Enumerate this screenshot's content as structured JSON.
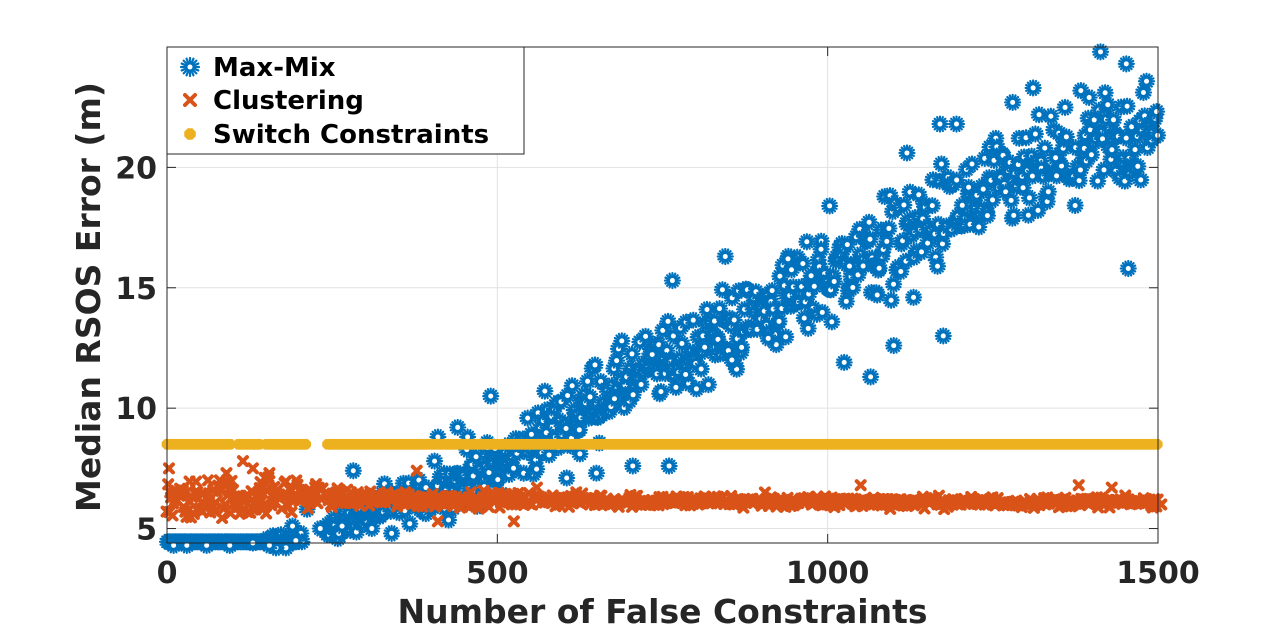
{
  "chart_data": {
    "type": "scatter",
    "title": "",
    "xlabel": "Number of False Constraints",
    "ylabel": "Median RSOS Error (m)",
    "xlim": [
      0,
      1500
    ],
    "ylim": [
      4.4,
      25
    ],
    "xticks": [
      0,
      500,
      1000,
      1500
    ],
    "yticks": [
      5,
      10,
      15,
      20
    ],
    "grid": true,
    "legend_position": "top-left",
    "series": [
      {
        "name": "Max-Mix",
        "color": "#0072BD",
        "marker": "asterisk",
        "trend": [
          [
            0,
            4.3
          ],
          [
            150,
            4.4
          ],
          [
            200,
            4.6
          ],
          [
            250,
            5.0
          ],
          [
            300,
            5.6
          ],
          [
            400,
            6.4
          ],
          [
            500,
            7.6
          ],
          [
            600,
            9.5
          ],
          [
            700,
            11.2
          ],
          [
            800,
            12.5
          ],
          [
            900,
            14.0
          ],
          [
            1000,
            15.5
          ],
          [
            1100,
            17.0
          ],
          [
            1200,
            18.2
          ],
          [
            1300,
            19.5
          ],
          [
            1400,
            20.7
          ],
          [
            1500,
            21.5
          ]
        ],
        "spread": [
          [
            0,
            0.05
          ],
          [
            200,
            0.3
          ],
          [
            400,
            0.9
          ],
          [
            600,
            1.3
          ],
          [
            800,
            1.6
          ],
          [
            1000,
            1.8
          ],
          [
            1200,
            2.0
          ],
          [
            1500,
            2.0
          ]
        ],
        "points": [
          [
            1413,
            24.8
          ],
          [
            1452,
            24.3
          ],
          [
            1311,
            23.3
          ],
          [
            1420,
            23.1
          ],
          [
            1280,
            22.7
          ],
          [
            1195,
            21.8
          ],
          [
            1170,
            21.8
          ],
          [
            1120,
            20.6
          ],
          [
            1345,
            20.4
          ],
          [
            1455,
            15.8
          ],
          [
            1003,
            18.4
          ],
          [
            990,
            16.6
          ],
          [
            940,
            16.2
          ],
          [
            845,
            16.3
          ],
          [
            1033,
            15.9
          ],
          [
            1075,
            14.7
          ],
          [
            975,
            15.5
          ],
          [
            765,
            15.3
          ],
          [
            1130,
            14.6
          ],
          [
            1175,
            13.0
          ],
          [
            1100,
            12.6
          ],
          [
            1065,
            11.3
          ],
          [
            1025,
            11.9
          ],
          [
            785,
            11.4
          ],
          [
            910,
            12.9
          ],
          [
            855,
            12.0
          ],
          [
            705,
            7.6
          ],
          [
            760,
            7.6
          ],
          [
            625,
            8.1
          ],
          [
            650,
            7.3
          ],
          [
            605,
            7.1
          ],
          [
            490,
            10.5
          ],
          [
            440,
            9.2
          ],
          [
            455,
            8.8
          ],
          [
            405,
            7.8
          ],
          [
            410,
            8.8
          ],
          [
            392,
            6.7
          ],
          [
            340,
            4.8
          ],
          [
            310,
            5.0
          ],
          [
            282,
            7.4
          ],
          [
            260,
            4.8
          ],
          [
            265,
            5.1
          ],
          [
            232,
            5.0
          ],
          [
            212,
            5.8
          ],
          [
            190,
            5.1
          ],
          [
            195,
            4.5
          ],
          [
            180,
            4.2
          ],
          [
            165,
            4.2
          ],
          [
            155,
            4.3
          ],
          [
            130,
            4.4
          ],
          [
            95,
            4.3
          ],
          [
            60,
            4.3
          ],
          [
            30,
            4.3
          ],
          [
            10,
            4.3
          ]
        ]
      },
      {
        "name": "Clustering",
        "color": "#D95319",
        "marker": "x",
        "trend": [
          [
            0,
            6.1
          ],
          [
            200,
            6.4
          ],
          [
            250,
            6.3
          ],
          [
            400,
            6.2
          ],
          [
            500,
            6.2
          ],
          [
            1000,
            6.1
          ],
          [
            1500,
            6.1
          ]
        ],
        "spread": [
          [
            0,
            0.8
          ],
          [
            200,
            0.7
          ],
          [
            250,
            0.35
          ],
          [
            600,
            0.25
          ],
          [
            1500,
            0.18
          ]
        ],
        "points": [
          [
            3,
            7.5
          ],
          [
            5,
            6.5
          ],
          [
            12,
            6.5
          ],
          [
            25,
            5.9
          ],
          [
            35,
            6.1
          ],
          [
            45,
            5.8
          ],
          [
            55,
            6.0
          ],
          [
            70,
            6.6
          ],
          [
            80,
            7.0
          ],
          [
            90,
            7.3
          ],
          [
            100,
            6.6
          ],
          [
            115,
            7.8
          ],
          [
            130,
            7.5
          ],
          [
            155,
            7.3
          ],
          [
            135,
            6.0
          ],
          [
            180,
            6.3
          ],
          [
            200,
            6.6
          ],
          [
            165,
            6.5
          ],
          [
            145,
            5.8
          ],
          [
            62,
            7.0
          ],
          [
            88,
            6.0
          ],
          [
            108,
            5.9
          ],
          [
            122,
            6.3
          ],
          [
            378,
            7.4
          ],
          [
            410,
            5.3
          ],
          [
            525,
            5.3
          ],
          [
            560,
            6.7
          ],
          [
            1430,
            6.7
          ],
          [
            1380,
            6.8
          ],
          [
            1050,
            6.8
          ],
          [
            905,
            6.5
          ],
          [
            1505,
            6.0
          ]
        ]
      },
      {
        "name": "Switch Constraints",
        "color": "#EDB120",
        "marker": "octagon",
        "value": 8.5,
        "ranges": [
          [
            0,
            98
          ],
          [
            108,
            142
          ],
          [
            150,
            212
          ],
          [
            243,
            1500
          ]
        ]
      }
    ]
  }
}
